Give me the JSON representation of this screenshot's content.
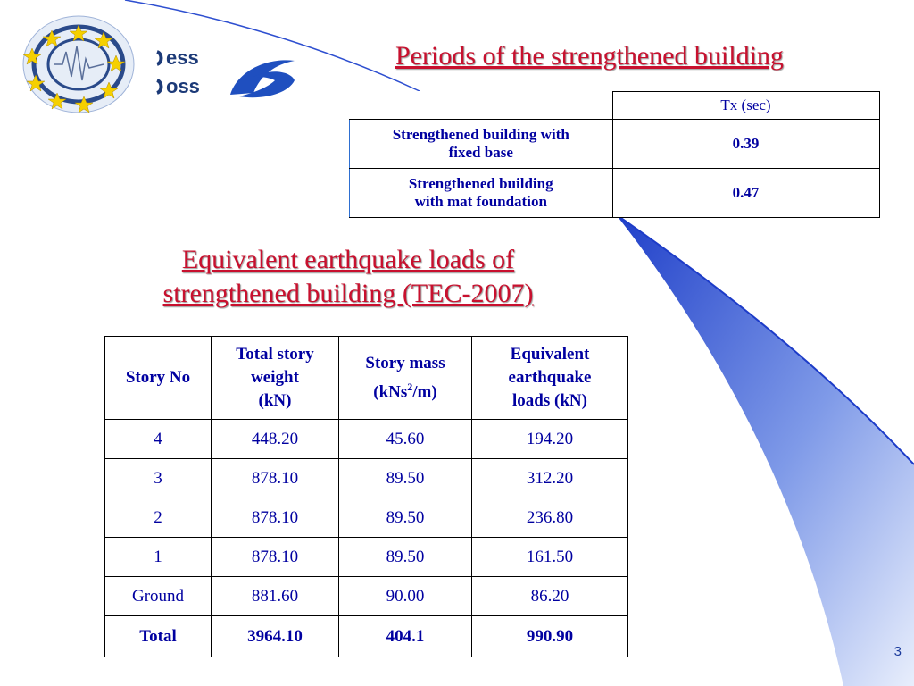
{
  "logo": {
    "line1": "ess",
    "line2": "oss"
  },
  "title1": "Periods of the strengthened building",
  "table1": {
    "header": "Tx (sec)",
    "rows": [
      {
        "label_line1": "Strengthened building with",
        "label_line2": "fixed base",
        "value": "0.39"
      },
      {
        "label_line1": "Strengthened building",
        "label_line2": "with mat foundation",
        "value": "0.47"
      }
    ]
  },
  "title2_line1": "Equivalent earthquake loads of",
  "title2_line2": "strengthened building (TEC-2007)",
  "table2": {
    "headers": {
      "story_no": "Story No",
      "weight_l1": "Total story",
      "weight_l2": "weight",
      "weight_l3": "(kN)",
      "mass_l1": "Story mass",
      "mass_l2a": "(kNs",
      "mass_sup": "2",
      "mass_l2b": "/m)",
      "eq_l1": "Equivalent",
      "eq_l2": "earthquake",
      "eq_l3": "loads (kN)"
    },
    "rows": [
      [
        "4",
        "448.20",
        "45.60",
        "194.20"
      ],
      [
        "3",
        "878.10",
        "89.50",
        "312.20"
      ],
      [
        "2",
        "878.10",
        "89.50",
        "236.80"
      ],
      [
        "1",
        "878.10",
        "89.50",
        "161.50"
      ],
      [
        "Ground",
        "881.60",
        "90.00",
        "86.20"
      ]
    ],
    "total": [
      "Total",
      "3964.10",
      "404.1",
      "990.90"
    ]
  },
  "page_number": "3",
  "colors": {
    "title": "#c8102e",
    "text": "#0000a0",
    "accent_blue": "#2e5fd8"
  }
}
